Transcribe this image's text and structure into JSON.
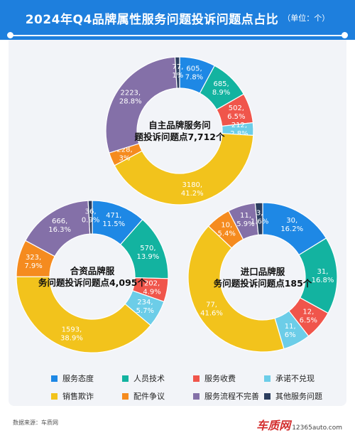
{
  "header": {
    "title": "2024年Q4品牌属性服务问题投诉问题点占比",
    "unit": "（单位：个）"
  },
  "legend": [
    {
      "label": "服务态度",
      "color": "#1e88e5"
    },
    {
      "label": "人员技术",
      "color": "#13b3a0"
    },
    {
      "label": "服务收费",
      "color": "#f0554b"
    },
    {
      "label": "承诺不兑现",
      "color": "#6ccde8"
    },
    {
      "label": "销售欺诈",
      "color": "#f2c31c"
    },
    {
      "label": "配件争议",
      "color": "#f58b1f"
    },
    {
      "label": "服务流程不完善",
      "color": "#8470a8"
    },
    {
      "label": "其他服务问题",
      "color": "#2c3e5f"
    }
  ],
  "chart_data": [
    {
      "type": "pie",
      "title": "自主品牌服务问题投诉问题点7,712个",
      "categories": [
        "服务态度",
        "人员技术",
        "服务收费",
        "承诺不兑现",
        "销售欺诈",
        "配件争议",
        "服务流程不完善",
        "其他服务问题"
      ],
      "values": [
        605,
        685,
        502,
        212,
        3180,
        228,
        2223,
        77
      ],
      "labels": [
        "605,\n7.8%",
        "685,\n8.9%",
        "502,\n6.5%",
        "212,\n2.8%",
        "3180,\n41.2%",
        "228,\n3%",
        "2223,\n28.8%",
        "77,\n1%"
      ]
    },
    {
      "type": "pie",
      "title": "合资品牌服务问题投诉问题点4,095个",
      "categories": [
        "服务态度",
        "人员技术",
        "服务收费",
        "承诺不兑现",
        "销售欺诈",
        "配件争议",
        "服务流程不完善",
        "其他服务问题"
      ],
      "values": [
        471,
        570,
        202,
        234,
        1593,
        323,
        666,
        36
      ],
      "labels": [
        "471,\n11.5%",
        "570,\n13.9%",
        "202,\n4.9%",
        "234,\n5.7%",
        "1593,\n38.9%",
        "323,\n7.9%",
        "666,\n16.3%",
        "36,\n0.9%"
      ]
    },
    {
      "type": "pie",
      "title": "进口品牌服务问题投诉问题点185个",
      "categories": [
        "服务态度",
        "人员技术",
        "服务收费",
        "承诺不兑现",
        "销售欺诈",
        "配件争议",
        "服务流程不完善",
        "其他服务问题"
      ],
      "values": [
        30,
        31,
        12,
        11,
        77,
        10,
        11,
        3
      ],
      "labels": [
        "30,\n16.2%",
        "31,\n16.8%",
        "12,\n6.5%",
        "11,\n6%",
        "77,\n41.6%",
        "10,\n5.4%",
        "11,\n5.9%",
        "3,\n1.6%"
      ]
    }
  ],
  "footer": {
    "source": "数据来源：车质网",
    "logo": "车质网",
    "site": "12365auto.com"
  }
}
